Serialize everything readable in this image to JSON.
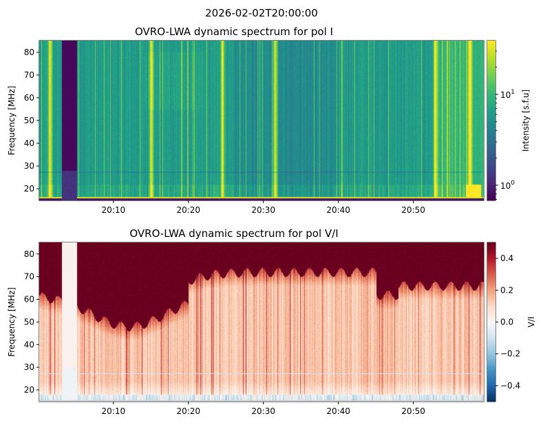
{
  "chart_data": {
    "suptitle": "2026-02-02T20:00:00",
    "panels": [
      {
        "type": "heatmap",
        "title": "OVRO-LWA dynamic spectrum for pol I",
        "xlabel": "",
        "ylabel": "Frequency [MHz]",
        "xlim_minutes_after_20h": [
          0.1,
          59.4
        ],
        "ylim": [
          14.85,
          85.1
        ],
        "xticks": [
          {
            "value": 10,
            "label": "20:10"
          },
          {
            "value": 20,
            "label": "20:20"
          },
          {
            "value": 30,
            "label": "20:30"
          },
          {
            "value": 40,
            "label": "20:40"
          },
          {
            "value": 50,
            "label": "20:50"
          }
        ],
        "yticks": [
          {
            "value": 20,
            "label": "20"
          },
          {
            "value": 30,
            "label": "30"
          },
          {
            "value": 40,
            "label": "40"
          },
          {
            "value": 50,
            "label": "50"
          },
          {
            "value": 60,
            "label": "60"
          },
          {
            "value": 70,
            "label": "70"
          },
          {
            "value": 80,
            "label": "80"
          }
        ],
        "colormap": "viridis",
        "colorbar": {
          "label": "Intensity [s.f.u]",
          "scale": "log",
          "range": [
            0.68,
            39
          ],
          "ticks": [
            {
              "value": 1,
              "base": "10",
              "exp": "0"
            },
            {
              "value": 10,
              "base": "10",
              "exp": "1"
            }
          ],
          "minor_ticks": [
            0.7,
            0.8,
            0.9,
            2,
            3,
            4,
            5,
            6,
            7,
            8,
            9,
            20,
            30
          ]
        },
        "features": {
          "data_gap_minutes": [
            3.1,
            5.1
          ],
          "bright_bursts_minutes": [
            1.5,
            15,
            24.5,
            31.5,
            52.9,
            57.5
          ],
          "background_sfu": 6
        }
      },
      {
        "type": "heatmap",
        "title": "OVRO-LWA dynamic spectrum for pol V/I",
        "xlabel": "",
        "ylabel": "Frequency [MHz]",
        "xlim_minutes_after_20h": [
          0.1,
          59.4
        ],
        "ylim": [
          14.85,
          85.1
        ],
        "xticks": [
          {
            "value": 10,
            "label": "20:10"
          },
          {
            "value": 20,
            "label": "20:20"
          },
          {
            "value": 30,
            "label": "20:30"
          },
          {
            "value": 40,
            "label": "20:40"
          },
          {
            "value": 50,
            "label": "20:50"
          }
        ],
        "yticks": [
          {
            "value": 20,
            "label": "20"
          },
          {
            "value": 30,
            "label": "30"
          },
          {
            "value": 40,
            "label": "40"
          },
          {
            "value": 50,
            "label": "50"
          },
          {
            "value": 60,
            "label": "60"
          },
          {
            "value": 70,
            "label": "70"
          },
          {
            "value": 80,
            "label": "80"
          }
        ],
        "colormap": "RdBu_r",
        "colorbar": {
          "label": "V/I",
          "scale": "linear",
          "range": [
            -0.5,
            0.5
          ],
          "ticks": [
            {
              "value": 0.4,
              "label": "0.4"
            },
            {
              "value": 0.2,
              "label": "0.2"
            },
            {
              "value": 0.0,
              "label": "0.0"
            },
            {
              "value": -0.2,
              "label": "−0.2"
            },
            {
              "value": -0.4,
              "label": "−0.4"
            }
          ]
        },
        "features": {
          "data_gap_minutes": [
            3.1,
            5.1
          ],
          "high_polarization_above_mhz": 55,
          "typical_vi": 0.15
        }
      }
    ]
  }
}
